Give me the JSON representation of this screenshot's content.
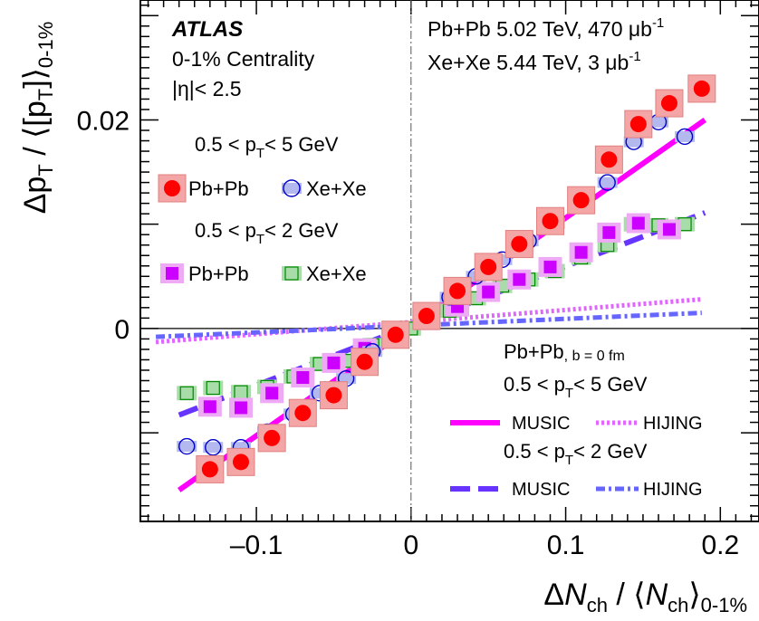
{
  "chart_data": {
    "type": "scatter",
    "title": "",
    "xlabel": "ΔN_ch / ⟨N_ch⟩_0-1%",
    "ylabel": "Δp_T / ⟨[p_T]⟩_0-1%",
    "xlim": [
      -0.175,
      0.225
    ],
    "ylim": [
      -0.0185,
      0.0315
    ],
    "x_ticks": [
      -0.1,
      0,
      0.1,
      0.2
    ],
    "x_tick_labels": [
      "–0.1",
      "0",
      "0.1",
      "0.2"
    ],
    "y_ticks": [
      0,
      0.02
    ],
    "y_tick_labels": [
      "0",
      "0.02"
    ],
    "grid": false,
    "experiment": "ATLAS",
    "info_lines": [
      "0-1% Centrality",
      "|η|< 2.5"
    ],
    "dataset_lines": [
      {
        "text": "Pb+Pb 5.02 TeV, 470 μb",
        "sup": "-1"
      },
      {
        "text": "Xe+Xe 5.44 TeV, 3 μb",
        "sup": "-1"
      }
    ],
    "groups": [
      {
        "label_pre": "0.5 < p",
        "label_sub": "T",
        "label_post": "< 5 GeV"
      },
      {
        "label_pre": "0.5 < p",
        "label_sub": "T",
        "label_post": "< 2 GeV"
      }
    ],
    "model_label": "Pb+Pb",
    "model_sub": ", b = 0 fm",
    "colors": {
      "pbpb_5": "#ff0000",
      "xexe_5": "#0000cc",
      "pbpb_2": "#cc00ff",
      "xexe_2": "#008800",
      "music_5": "#ff00ff",
      "hijing_5": "#e066ff",
      "music_2": "#6633ff",
      "hijing_2": "#6666ff"
    },
    "series": [
      {
        "name": "Pb+Pb",
        "group": 0,
        "marker": "filled-circle",
        "color": "#ff0000",
        "sys_fill": "#f4a6a6",
        "points": [
          [
            -0.13,
            -0.0135
          ],
          [
            -0.11,
            -0.0128
          ],
          [
            -0.09,
            -0.0105
          ],
          [
            -0.07,
            -0.0081
          ],
          [
            -0.05,
            -0.0064
          ],
          [
            -0.03,
            -0.0032
          ],
          [
            -0.01,
            -0.0006
          ],
          [
            0.01,
            0.0012
          ],
          [
            0.03,
            0.0036
          ],
          [
            0.05,
            0.0059
          ],
          [
            0.07,
            0.0081
          ],
          [
            0.09,
            0.0103
          ],
          [
            0.11,
            0.0123
          ],
          [
            0.128,
            0.0162
          ],
          [
            0.147,
            0.0196
          ],
          [
            0.167,
            0.0216
          ],
          [
            0.188,
            0.023
          ]
        ]
      },
      {
        "name": "Xe+Xe",
        "group": 0,
        "marker": "open-circle",
        "color": "#0000cc",
        "sys_fill": "#b3b8ee",
        "points": [
          [
            -0.145,
            -0.0113
          ],
          [
            -0.128,
            -0.0114
          ],
          [
            -0.11,
            -0.0114
          ],
          [
            -0.093,
            -0.0099
          ],
          [
            -0.076,
            -0.0082
          ],
          [
            -0.059,
            -0.0062
          ],
          [
            -0.042,
            -0.0048
          ],
          [
            -0.025,
            -0.0022
          ],
          [
            -0.008,
            -0.0003
          ],
          [
            0.008,
            0.0011
          ],
          [
            0.025,
            0.003
          ],
          [
            0.042,
            0.005
          ],
          [
            0.059,
            0.0066
          ],
          [
            0.076,
            0.0084
          ],
          [
            0.093,
            0.0101
          ],
          [
            0.11,
            0.0125
          ],
          [
            0.127,
            0.014
          ],
          [
            0.144,
            0.0179
          ],
          [
            0.16,
            0.0198
          ],
          [
            0.177,
            0.0184
          ]
        ]
      },
      {
        "name": "Pb+Pb",
        "group": 1,
        "marker": "filled-square",
        "color": "#cc00ff",
        "sys_fill": "#eeaaf5",
        "points": [
          [
            -0.13,
            -0.0075
          ],
          [
            -0.11,
            -0.0076
          ],
          [
            -0.09,
            -0.0062
          ],
          [
            -0.07,
            -0.0047
          ],
          [
            -0.05,
            -0.0033
          ],
          [
            -0.03,
            -0.0019
          ],
          [
            -0.01,
            -0.0006
          ],
          [
            0.01,
            0.0008
          ],
          [
            0.03,
            0.0021
          ],
          [
            0.05,
            0.0035
          ],
          [
            0.07,
            0.0047
          ],
          [
            0.09,
            0.0059
          ],
          [
            0.11,
            0.0073
          ],
          [
            0.128,
            0.0092
          ],
          [
            0.147,
            0.0101
          ],
          [
            0.167,
            0.0095
          ]
        ]
      },
      {
        "name": "Xe+Xe",
        "group": 1,
        "marker": "open-square",
        "color": "#008800",
        "sys_fill": "#a8dca8",
        "points": [
          [
            -0.145,
            -0.0062
          ],
          [
            -0.128,
            -0.0057
          ],
          [
            -0.11,
            -0.0061
          ],
          [
            -0.093,
            -0.0056
          ],
          [
            -0.076,
            -0.0046
          ],
          [
            -0.059,
            -0.0034
          ],
          [
            -0.042,
            -0.0031
          ],
          [
            -0.025,
            -0.0016
          ],
          [
            -0.008,
            -0.0003
          ],
          [
            0.0,
            0.0
          ],
          [
            0.008,
            0.0006
          ],
          [
            0.025,
            0.0017
          ],
          [
            0.042,
            0.0029
          ],
          [
            0.059,
            0.0041
          ],
          [
            0.076,
            0.0047
          ],
          [
            0.093,
            0.0055
          ],
          [
            0.11,
            0.0068
          ],
          [
            0.127,
            0.008
          ],
          [
            0.144,
            0.01
          ],
          [
            0.16,
            0.0099
          ],
          [
            0.177,
            0.01
          ]
        ]
      }
    ],
    "models": [
      {
        "name": "MUSIC",
        "group": 0,
        "style": "solid",
        "color": "#ff00ff",
        "x": [
          -0.15,
          0.19
        ],
        "y": [
          -0.0155,
          0.02
        ]
      },
      {
        "name": "HIJING",
        "group": 0,
        "style": "dotted",
        "color": "#e066ff",
        "x": [
          -0.165,
          0.188
        ],
        "y": [
          -0.0013,
          0.0028
        ]
      },
      {
        "name": "MUSIC",
        "group": 1,
        "style": "dashed",
        "color": "#6633ff",
        "x": [
          -0.15,
          0.19
        ],
        "y": [
          -0.0083,
          0.0111
        ]
      },
      {
        "name": "HIJING",
        "group": 1,
        "style": "dashdot",
        "color": "#6666ff",
        "x": [
          -0.165,
          0.188
        ],
        "y": [
          -0.0008,
          0.0015
        ]
      }
    ]
  }
}
